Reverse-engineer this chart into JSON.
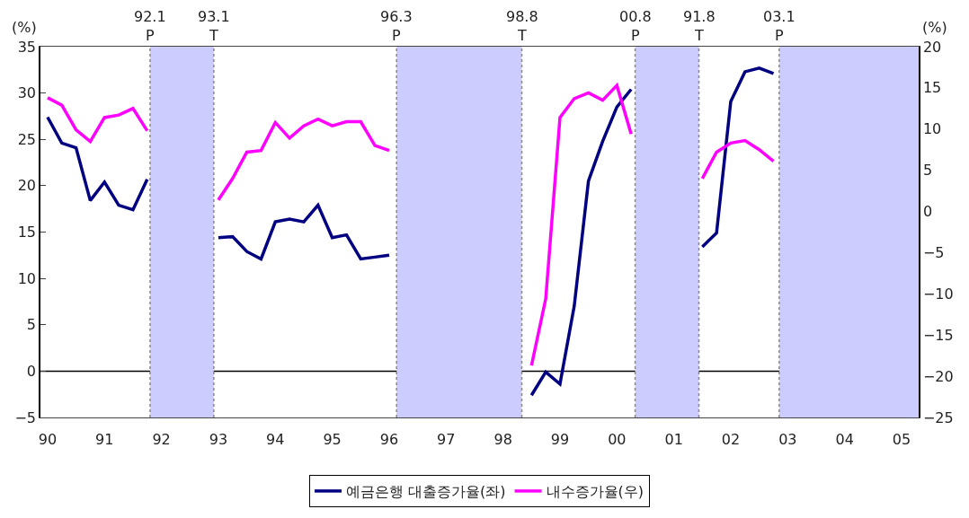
{
  "chart_data": {
    "type": "line",
    "xlabel": null,
    "ylabel": "(%)",
    "y2label": "(%)",
    "x": [
      1990.0,
      1990.25,
      1990.5,
      1990.75,
      1991.0,
      1991.25,
      1991.5,
      1991.75,
      1992.0,
      1992.25,
      1992.5,
      1992.75,
      1993.0,
      1993.25,
      1993.5,
      1993.75,
      1994.0,
      1994.25,
      1994.5,
      1994.75,
      1995.0,
      1995.25,
      1995.5,
      1995.75,
      1996.0,
      1996.25,
      1996.5,
      1996.75,
      1997.0,
      1997.25,
      1997.5,
      1997.75,
      1998.0,
      1998.25,
      1998.5,
      1998.75,
      1999.0,
      1999.25,
      1999.5,
      1999.75,
      2000.0,
      2000.25,
      2000.5,
      2000.75,
      2001.0,
      2001.25,
      2001.5,
      2001.75,
      2002.0,
      2002.25,
      2002.5,
      2002.75
    ],
    "series": [
      {
        "name": "예금은행 대출증가율(좌)",
        "color": "#000080",
        "values": [
          27.4,
          24.6,
          24.1,
          18.4,
          20.4,
          17.9,
          17.4,
          20.7,
          null,
          null,
          null,
          null,
          14.4,
          14.5,
          12.9,
          12.1,
          16.1,
          16.4,
          16.1,
          17.9,
          14.4,
          14.7,
          12.1,
          12.3,
          12.5,
          null,
          null,
          null,
          null,
          null,
          null,
          null,
          null,
          null,
          -2.6,
          -0.1,
          -1.4,
          7.0,
          20.5,
          24.8,
          28.5,
          30.4,
          null,
          null,
          null,
          null,
          13.4,
          14.9,
          29.1,
          32.3,
          32.7,
          32.1
        ]
      },
      {
        "name": "내수증가율(우)",
        "color": "#ff00ff",
        "axis": "y2",
        "values": [
          13.8,
          12.9,
          9.9,
          8.5,
          11.4,
          11.7,
          12.5,
          9.8,
          null,
          null,
          null,
          null,
          1.4,
          4.0,
          7.2,
          7.4,
          10.8,
          8.9,
          10.4,
          11.2,
          10.4,
          10.9,
          10.9,
          8.0,
          7.4,
          null,
          null,
          null,
          null,
          null,
          null,
          null,
          null,
          null,
          -18.7,
          -10.6,
          11.4,
          13.7,
          14.4,
          13.5,
          15.3,
          9.4,
          null,
          null,
          null,
          null,
          4.0,
          7.2,
          8.3,
          8.6,
          7.5,
          6.1
        ]
      }
    ],
    "xlim": [
      1989.875,
      2005.3
    ],
    "xticks": [
      {
        "value": 1990,
        "label": "90"
      },
      {
        "value": 1991,
        "label": "91"
      },
      {
        "value": 1992,
        "label": "92"
      },
      {
        "value": 1993,
        "label": "93"
      },
      {
        "value": 1994,
        "label": "94"
      },
      {
        "value": 1995,
        "label": "95"
      },
      {
        "value": 1996,
        "label": "96"
      },
      {
        "value": 1997,
        "label": "97"
      },
      {
        "value": 1998,
        "label": "98"
      },
      {
        "value": 1999,
        "label": "99"
      },
      {
        "value": 2000,
        "label": "00"
      },
      {
        "value": 2001,
        "label": "01"
      },
      {
        "value": 2002,
        "label": "02"
      },
      {
        "value": 2003,
        "label": "03"
      },
      {
        "value": 2004,
        "label": "04"
      },
      {
        "value": 2005,
        "label": "05"
      }
    ],
    "ylim": [
      -5,
      35
    ],
    "yticks": [
      -5,
      0,
      5,
      10,
      15,
      20,
      25,
      30,
      35
    ],
    "y2lim": [
      -25,
      20
    ],
    "y2ticks": [
      -25,
      -20,
      -15,
      -10,
      -5,
      0,
      5,
      10,
      15,
      20
    ],
    "bands": [
      {
        "axis": "x",
        "from": 1991.8,
        "to": 1992.92,
        "label": null,
        "color": "#ccccff"
      },
      {
        "axis": "x",
        "from": 1996.13,
        "to": 1998.33,
        "label": null,
        "color": "#ccccff"
      },
      {
        "axis": "x",
        "from": 2000.32,
        "to": 2001.44,
        "label": null,
        "color": "#ccccff"
      },
      {
        "axis": "x",
        "from": 2002.85,
        "to": 2005.3,
        "label": null,
        "color": "#ccccff"
      }
    ],
    "ref_lines": [
      {
        "axis": "y",
        "value": 0,
        "label": null,
        "color": "#000000",
        "line_style": "solid"
      },
      {
        "axis": "x",
        "value": 1991.8,
        "label": "92.1\nP",
        "color": "#888888",
        "line_style": "dotted"
      },
      {
        "axis": "x",
        "value": 1992.92,
        "label": "93.1\nT",
        "color": "#888888",
        "line_style": "dotted"
      },
      {
        "axis": "x",
        "value": 1996.13,
        "label": "96.3\nP",
        "color": "#888888",
        "line_style": "dotted"
      },
      {
        "axis": "x",
        "value": 1998.33,
        "label": "98.8\nT",
        "color": "#888888",
        "line_style": "dotted"
      },
      {
        "axis": "x",
        "value": 2000.32,
        "label": "00.8\nP",
        "color": "#888888",
        "line_style": "dotted"
      },
      {
        "axis": "x",
        "value": 2001.44,
        "label": "91.8\nT",
        "color": "#888888",
        "line_style": "dotted"
      },
      {
        "axis": "x",
        "value": 2002.85,
        "label": "03.1\nP",
        "color": "#888888",
        "line_style": "dotted"
      }
    ],
    "grid": false,
    "legend": "bottom",
    "marker": "none",
    "line_style": "solid"
  }
}
